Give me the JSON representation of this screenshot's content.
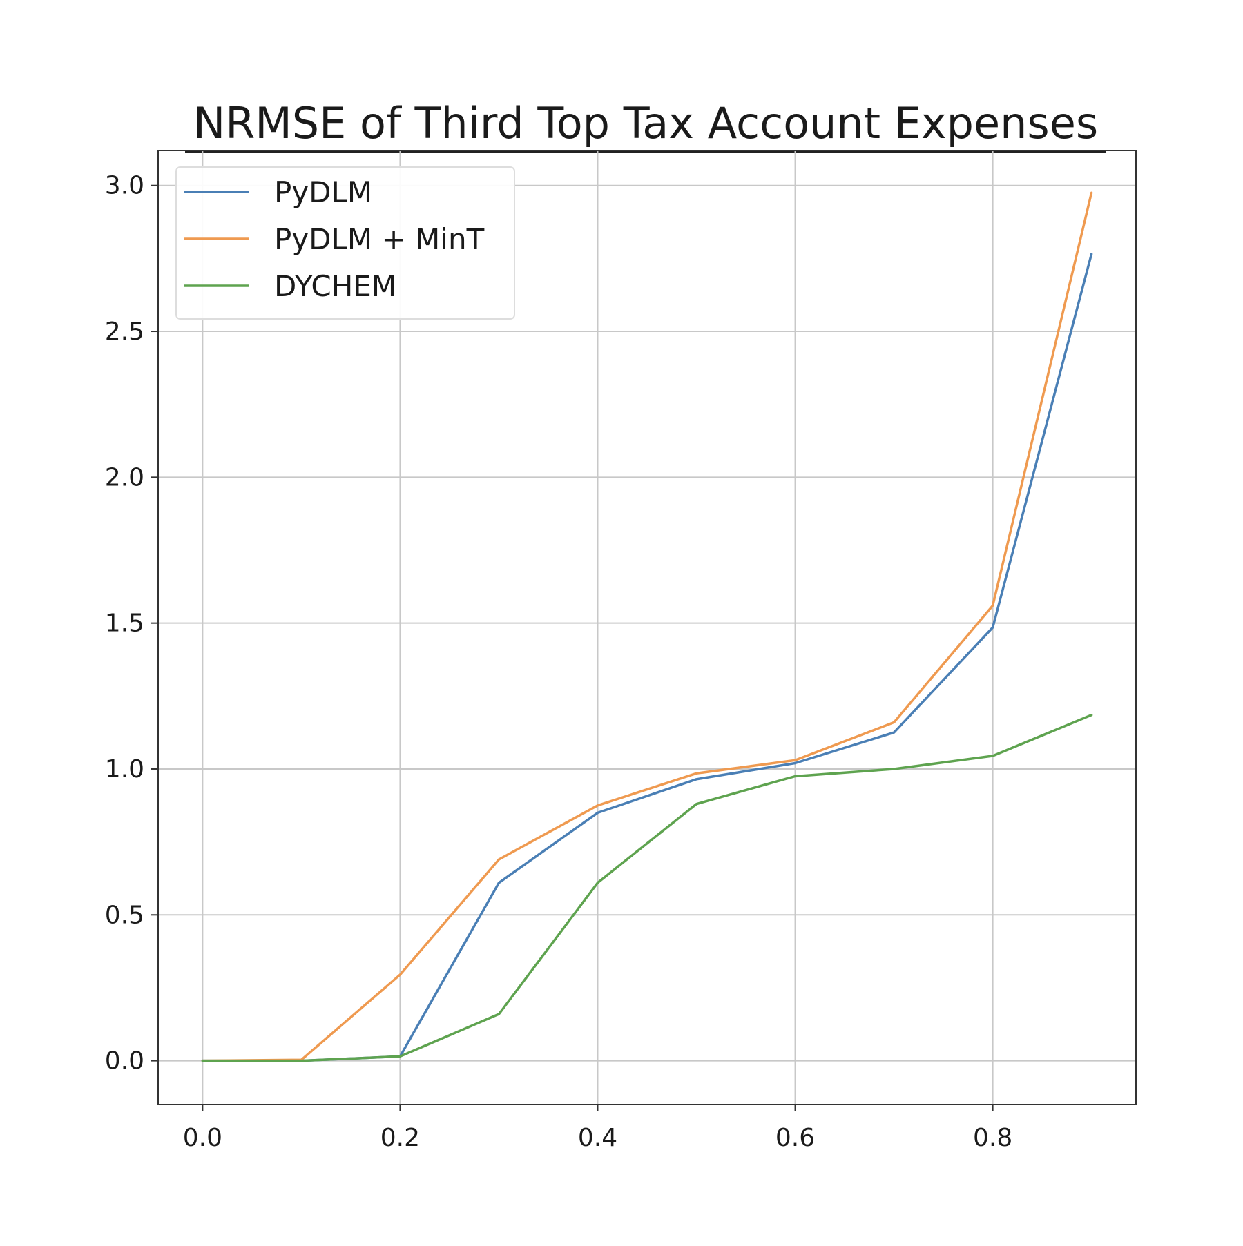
{
  "chart_data": {
    "type": "line",
    "title": "NRMSE of Third Top Tax Account Expenses",
    "xlabel": "",
    "ylabel": "",
    "xlim": [
      -0.045,
      0.945
    ],
    "ylim": [
      -0.15,
      3.12
    ],
    "x_ticks": [
      "0.0",
      "0.2",
      "0.4",
      "0.6",
      "0.8"
    ],
    "x_tick_values": [
      0.0,
      0.2,
      0.4,
      0.6,
      0.8
    ],
    "y_ticks": [
      "0.0",
      "0.5",
      "1.0",
      "1.5",
      "2.0",
      "2.5",
      "3.0"
    ],
    "y_tick_values": [
      0.0,
      0.5,
      1.0,
      1.5,
      2.0,
      2.5,
      3.0
    ],
    "grid": true,
    "legend_position": "top-left",
    "x": [
      0.0,
      0.1,
      0.2,
      0.3,
      0.4,
      0.5,
      0.6,
      0.7,
      0.8,
      0.9
    ],
    "series": [
      {
        "name": "PyDLM",
        "color": "#4a7fb5",
        "values": [
          0.0,
          0.0,
          0.015,
          0.61,
          0.85,
          0.965,
          1.02,
          1.125,
          1.485,
          2.765
        ]
      },
      {
        "name": "PyDLM + MinT",
        "color": "#ef9a50",
        "values": [
          0.0,
          0.003,
          0.295,
          0.69,
          0.875,
          0.985,
          1.03,
          1.16,
          1.56,
          2.975
        ]
      },
      {
        "name": "DYCHEM",
        "color": "#5ea34f",
        "values": [
          0.0,
          0.0,
          0.015,
          0.16,
          0.61,
          0.88,
          0.975,
          1.0,
          1.045,
          1.185
        ]
      }
    ]
  }
}
